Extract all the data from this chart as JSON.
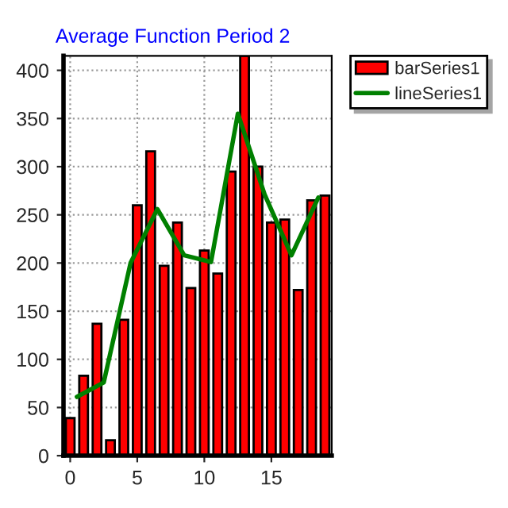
{
  "chart_data": {
    "type": "bar",
    "title": "Average Function Period 2",
    "x": [
      0,
      1,
      2,
      3,
      4,
      5,
      6,
      7,
      8,
      9,
      10,
      11,
      12,
      13,
      14,
      15,
      16,
      17,
      18,
      19
    ],
    "series": [
      {
        "name": "barSeries1",
        "color": "#ff0000",
        "values": [
          39,
          83,
          137,
          16,
          141,
          260,
          316,
          197,
          242,
          174,
          213,
          189,
          295,
          415,
          300,
          242,
          245,
          172,
          265,
          270
        ]
      },
      {
        "name": "lineSeries1",
        "type": "line",
        "color": "#008000",
        "x": [
          0.5,
          2.5,
          4.5,
          6.5,
          8.5,
          10.5,
          12.5,
          14.5,
          16.5,
          18.5
        ],
        "values": [
          61,
          76,
          200,
          256,
          208,
          201,
          355,
          271,
          208,
          268
        ]
      }
    ],
    "xlim": [
      -0.5,
      19.5
    ],
    "ylim": [
      0,
      415
    ],
    "xticks": [
      0,
      5,
      10,
      15
    ],
    "yticks": [
      0,
      50,
      100,
      150,
      200,
      250,
      300,
      350,
      400
    ],
    "grid": true,
    "legend": "top right"
  }
}
